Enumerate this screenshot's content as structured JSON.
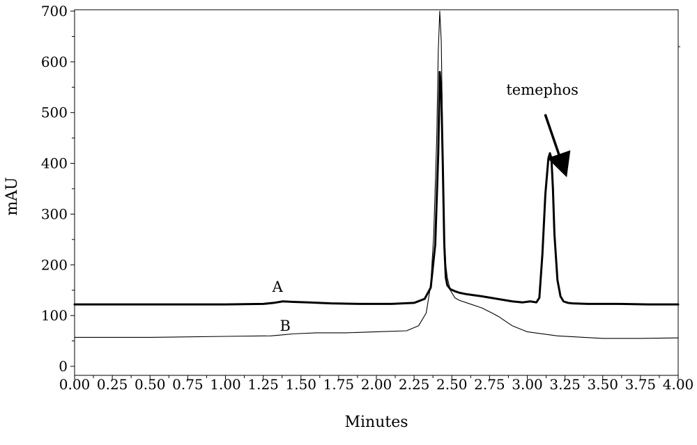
{
  "chart_data": {
    "type": "line",
    "title": "",
    "xlabel": "Minutes",
    "ylabel": "mAU",
    "xlim": [
      0.0,
      4.0
    ],
    "ylim": [
      0,
      700
    ],
    "x_ticks": [
      0.0,
      0.25,
      0.5,
      0.75,
      1.0,
      1.25,
      1.5,
      1.75,
      2.0,
      2.25,
      2.5,
      2.75,
      3.0,
      3.25,
      3.5,
      3.75,
      4.0
    ],
    "x_tick_labels": [
      "0.00",
      "0.25",
      "0.50",
      "0.75",
      "1.00",
      "1.25",
      "1.50",
      "1.75",
      "2.00",
      "2.25",
      "2.50",
      "2.75",
      "3.00",
      "3.25",
      "3.50",
      "3.75",
      "4.00"
    ],
    "y_ticks": [
      0,
      100,
      200,
      300,
      400,
      500,
      600,
      700
    ],
    "y_tick_labels": [
      "0",
      "100",
      "200",
      "300",
      "400",
      "500",
      "600",
      "700"
    ],
    "grid": false,
    "legend": "none",
    "series": [
      {
        "label": "A",
        "color": "#000000",
        "style": "bold",
        "x": [
          0.0,
          0.5,
          1.0,
          1.25,
          1.32,
          1.38,
          1.45,
          1.55,
          1.7,
          1.9,
          2.1,
          2.25,
          2.32,
          2.36,
          2.39,
          2.41,
          2.42,
          2.43,
          2.44,
          2.45,
          2.46,
          2.47,
          2.49,
          2.52,
          2.55,
          2.6,
          2.7,
          2.8,
          2.9,
          2.97,
          3.02,
          3.06,
          3.08,
          3.1,
          3.12,
          3.14,
          3.15,
          3.16,
          3.17,
          3.18,
          3.2,
          3.22,
          3.24,
          3.27,
          3.3,
          3.4,
          3.6,
          3.8,
          4.0
        ],
        "y": [
          122,
          122,
          122,
          123,
          125,
          128,
          127,
          126,
          124,
          123,
          123,
          125,
          133,
          155,
          240,
          420,
          580,
          540,
          400,
          240,
          175,
          160,
          152,
          148,
          145,
          142,
          138,
          133,
          128,
          126,
          128,
          126,
          135,
          220,
          340,
          410,
          420,
          410,
          350,
          260,
          170,
          138,
          128,
          125,
          124,
          123,
          123,
          122,
          122
        ]
      },
      {
        "label": "B",
        "color": "#000000",
        "style": "thin",
        "x": [
          0.0,
          0.5,
          1.0,
          1.3,
          1.38,
          1.45,
          1.6,
          1.8,
          2.0,
          2.2,
          2.28,
          2.33,
          2.36,
          2.38,
          2.4,
          2.41,
          2.42,
          2.43,
          2.44,
          2.45,
          2.46,
          2.47,
          2.49,
          2.52,
          2.55,
          2.6,
          2.7,
          2.78,
          2.81,
          2.85,
          2.9,
          3.0,
          3.2,
          3.5,
          3.75,
          4.0
        ],
        "y": [
          57,
          57,
          59,
          60,
          62,
          64,
          66,
          66,
          68,
          70,
          80,
          105,
          160,
          260,
          450,
          620,
          700,
          640,
          430,
          260,
          200,
          175,
          150,
          135,
          130,
          125,
          115,
          103,
          98,
          90,
          80,
          68,
          60,
          55,
          55,
          56
        ]
      }
    ],
    "annotations": [
      {
        "text": "A",
        "x": 1.31,
        "y": 147
      },
      {
        "text": "B",
        "x": 1.36,
        "y": 70
      },
      {
        "text": "temephos",
        "x": 3.1,
        "y": 535,
        "arrow_to": {
          "x": 3.18,
          "y": 420
        }
      }
    ]
  }
}
